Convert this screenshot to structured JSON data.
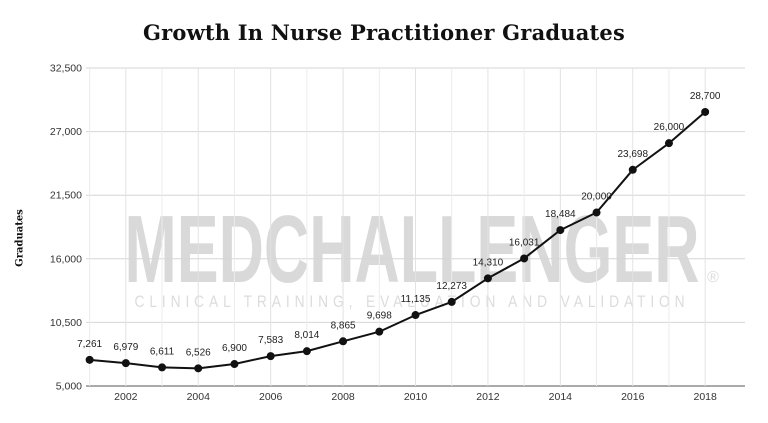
{
  "chart_data": {
    "type": "line",
    "title": "Growth In Nurse Practitioner Graduates",
    "ylabel": "Graduates",
    "xlabel": "",
    "x": [
      2001,
      2002,
      2003,
      2004,
      2005,
      2006,
      2007,
      2008,
      2009,
      2010,
      2011,
      2012,
      2013,
      2014,
      2015,
      2016,
      2017,
      2018
    ],
    "values": [
      7261,
      6979,
      6611,
      6526,
      6900,
      7583,
      8014,
      8865,
      9698,
      11135,
      12273,
      14310,
      16031,
      18484,
      20000,
      23698,
      26000,
      28700
    ],
    "data_labels": [
      "7,261",
      "6,979",
      "6,611",
      "6,526",
      "6,900",
      "7,583",
      "8,014",
      "8,865",
      "9,698",
      "11,135",
      "12,273",
      "14,310",
      "16,031",
      "18,484",
      "20,000",
      "23,698",
      "26,000",
      "28,700"
    ],
    "xlim": [
      2000.9,
      2019.1
    ],
    "x_ticks": [
      "2002",
      "2004",
      "2006",
      "2008",
      "2010",
      "2012",
      "2014",
      "2016",
      "2018"
    ],
    "x_tick_values": [
      2002,
      2004,
      2006,
      2008,
      2010,
      2012,
      2014,
      2016,
      2018
    ],
    "ylim": [
      5000,
      32500
    ],
    "y_ticks": [
      "5,000",
      "10,500",
      "16,000",
      "21,500",
      "27,000",
      "32,500"
    ],
    "y_tick_values": [
      5000,
      10500,
      16000,
      21500,
      27000,
      32500
    ],
    "grid": true,
    "line_color": "#111111",
    "watermark": {
      "main": "MEDCHALLENGER",
      "sub": "CLINICAL TRAINING, EVALUATION AND VALIDATION",
      "reg": "®"
    }
  }
}
